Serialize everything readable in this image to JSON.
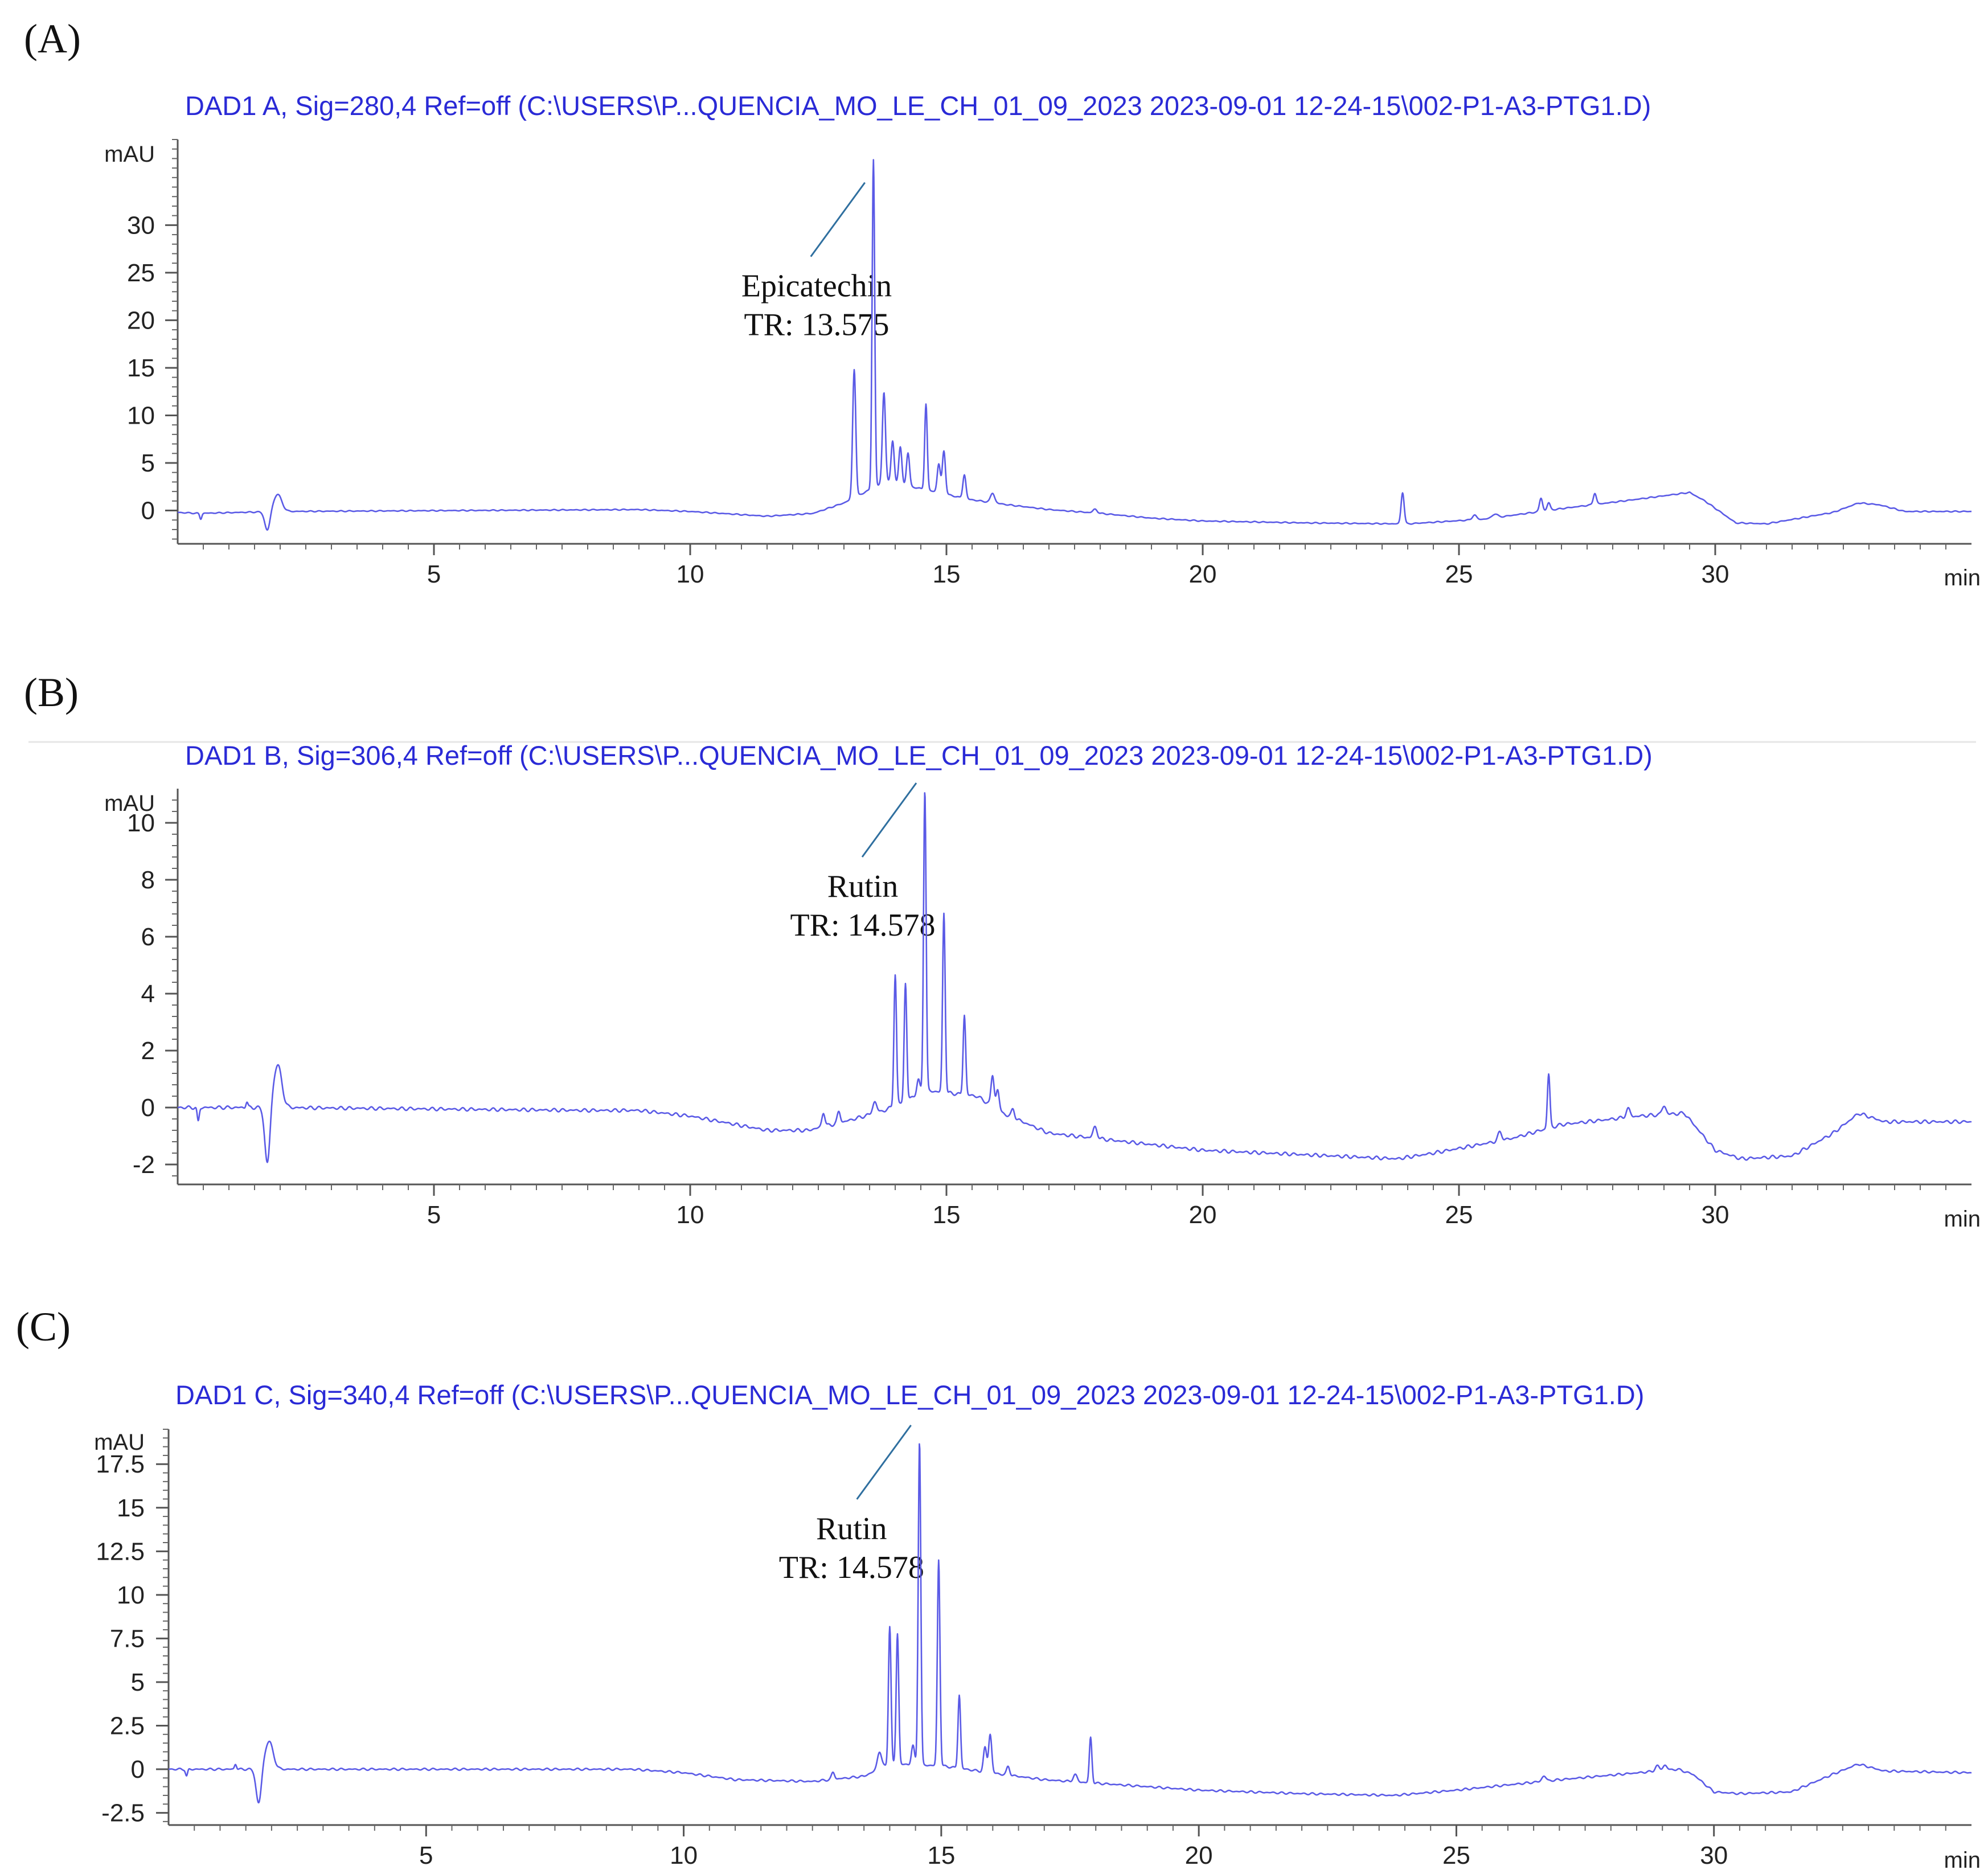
{
  "chart_data": [
    {
      "type": "line",
      "panel_label": "(A)",
      "title": "DAD1 A, Sig=280,4 Ref=off (C:\\USERS\\P...QUENCIA_MO_LE_CH_01_09_2023 2023-09-01 12-24-15\\002-P1-A3-PTG1.D)",
      "ylabel": "mAU",
      "xlabel": "min",
      "xlim": [
        0,
        35
      ],
      "ylim": [
        -3.5,
        39
      ],
      "x_ticks": [
        5,
        10,
        15,
        20,
        25,
        30
      ],
      "x_tick_labels": [
        "5",
        "10",
        "15",
        "20",
        "25",
        "30"
      ],
      "y_ticks": [
        0,
        5,
        10,
        15,
        20,
        25,
        30
      ],
      "y_tick_labels": [
        "0",
        "5",
        "10",
        "15",
        "20",
        "25",
        "30"
      ],
      "color": "#5a5ae6",
      "annotation": {
        "line1": "Epicatechin",
        "line2": "TR: 13.575",
        "peak_x": 13.575,
        "label_x": 10.8,
        "label_y": 22.5
      },
      "baseline": [
        [
          0,
          -0.2
        ],
        [
          0.4,
          -0.3
        ],
        [
          2.0,
          -0.1
        ],
        [
          9.0,
          0.1
        ],
        [
          10.0,
          -0.1
        ],
        [
          11.5,
          -0.6
        ],
        [
          12.4,
          -0.3
        ],
        [
          13.0,
          0.8
        ],
        [
          13.8,
          3.0
        ],
        [
          14.6,
          2.2
        ],
        [
          15.4,
          1.2
        ],
        [
          16.2,
          0.6
        ],
        [
          17.0,
          0.1
        ],
        [
          18.0,
          -0.3
        ],
        [
          19.0,
          -0.8
        ],
        [
          20.0,
          -1.1
        ],
        [
          22.0,
          -1.3
        ],
        [
          23.8,
          -1.4
        ],
        [
          24.0,
          -1.4
        ],
        [
          25.5,
          -0.9
        ],
        [
          27.0,
          0.2
        ],
        [
          28.5,
          1.2
        ],
        [
          29.5,
          1.9
        ],
        [
          29.8,
          1.0
        ],
        [
          30.4,
          -1.3
        ],
        [
          31.0,
          -1.4
        ],
        [
          32.3,
          -0.2
        ],
        [
          32.8,
          0.8
        ],
        [
          33.2,
          0.6
        ],
        [
          33.7,
          -0.1
        ],
        [
          35.0,
          -0.1
        ]
      ],
      "peaks": [
        {
          "x": 1.75,
          "h": -2.0,
          "w": 0.05
        },
        {
          "x": 1.95,
          "h": 1.8,
          "w": 0.08
        },
        {
          "x": 0.45,
          "h": -0.6,
          "w": 0.02
        },
        {
          "x": 13.2,
          "h": 13.5,
          "w": 0.03
        },
        {
          "x": 13.575,
          "h": 34.5,
          "w": 0.025
        },
        {
          "x": 13.78,
          "h": 9.5,
          "w": 0.03
        },
        {
          "x": 13.95,
          "h": 4.5,
          "w": 0.03
        },
        {
          "x": 14.1,
          "h": 4.0,
          "w": 0.03
        },
        {
          "x": 14.25,
          "h": 3.5,
          "w": 0.03
        },
        {
          "x": 14.6,
          "h": 9.0,
          "w": 0.025
        },
        {
          "x": 14.85,
          "h": 3.0,
          "w": 0.03
        },
        {
          "x": 14.95,
          "h": 4.5,
          "w": 0.03
        },
        {
          "x": 15.35,
          "h": 2.5,
          "w": 0.03
        },
        {
          "x": 15.9,
          "h": 1.0,
          "w": 0.04
        },
        {
          "x": 17.9,
          "h": 0.4,
          "w": 0.04
        },
        {
          "x": 23.9,
          "h": 3.3,
          "w": 0.03
        },
        {
          "x": 25.3,
          "h": 0.5,
          "w": 0.04
        },
        {
          "x": 25.7,
          "h": 0.4,
          "w": 0.05
        },
        {
          "x": 26.6,
          "h": 1.4,
          "w": 0.03
        },
        {
          "x": 26.75,
          "h": 0.8,
          "w": 0.03
        },
        {
          "x": 27.65,
          "h": 1.2,
          "w": 0.03
        }
      ]
    },
    {
      "type": "line",
      "panel_label": "(B)",
      "title": "DAD1 B, Sig=306,4 Ref=off (C:\\USERS\\P...QUENCIA_MO_LE_CH_01_09_2023 2023-09-01 12-24-15\\002-P1-A3-PTG1.D)",
      "ylabel": "mAU",
      "xlabel": "min",
      "xlim": [
        0,
        35
      ],
      "ylim": [
        -2.7,
        11.2
      ],
      "x_ticks": [
        5,
        10,
        15,
        20,
        25,
        30
      ],
      "x_tick_labels": [
        "5",
        "10",
        "15",
        "20",
        "25",
        "30"
      ],
      "y_ticks": [
        -2,
        0,
        2,
        4,
        6,
        8,
        10
      ],
      "y_tick_labels": [
        "-2",
        "0",
        "2",
        "4",
        "6",
        "8",
        "10"
      ],
      "color": "#5a5ae6",
      "annotation": {
        "line1": "Rutin",
        "line2": "TR: 14.578",
        "peak_x": 14.578,
        "label_x": 11.7,
        "label_y": 7.4
      },
      "baseline": [
        [
          0,
          0.0
        ],
        [
          1.5,
          0.0
        ],
        [
          2.0,
          0.0
        ],
        [
          8.0,
          -0.1
        ],
        [
          9.0,
          -0.1
        ],
        [
          10.0,
          -0.3
        ],
        [
          11.5,
          -0.8
        ],
        [
          12.3,
          -0.8
        ],
        [
          13.0,
          -0.5
        ],
        [
          13.8,
          -0.1
        ],
        [
          14.6,
          0.6
        ],
        [
          15.6,
          0.4
        ],
        [
          16.1,
          -0.2
        ],
        [
          17.0,
          -0.9
        ],
        [
          18.0,
          -1.1
        ],
        [
          20.0,
          -1.5
        ],
        [
          23.8,
          -1.8
        ],
        [
          24.5,
          -1.6
        ],
        [
          26.0,
          -1.1
        ],
        [
          27.0,
          -0.6
        ],
        [
          28.5,
          -0.3
        ],
        [
          29.4,
          -0.2
        ],
        [
          30.0,
          -1.5
        ],
        [
          30.5,
          -1.8
        ],
        [
          31.5,
          -1.7
        ],
        [
          32.3,
          -0.9
        ],
        [
          32.8,
          -0.2
        ],
        [
          33.3,
          -0.5
        ],
        [
          35.0,
          -0.5
        ]
      ],
      "peaks": [
        {
          "x": 1.75,
          "h": -2.0,
          "w": 0.05
        },
        {
          "x": 1.95,
          "h": 1.5,
          "w": 0.08
        },
        {
          "x": 1.35,
          "h": 0.2,
          "w": 0.02
        },
        {
          "x": 0.4,
          "h": -0.5,
          "w": 0.02
        },
        {
          "x": 12.6,
          "h": 0.5,
          "w": 0.03
        },
        {
          "x": 12.9,
          "h": 0.4,
          "w": 0.03
        },
        {
          "x": 13.6,
          "h": 0.4,
          "w": 0.04
        },
        {
          "x": 14.0,
          "h": 4.6,
          "w": 0.025
        },
        {
          "x": 14.2,
          "h": 4.1,
          "w": 0.025
        },
        {
          "x": 14.45,
          "h": 0.5,
          "w": 0.03
        },
        {
          "x": 14.578,
          "h": 10.6,
          "w": 0.025
        },
        {
          "x": 14.95,
          "h": 6.3,
          "w": 0.025
        },
        {
          "x": 15.35,
          "h": 2.8,
          "w": 0.025
        },
        {
          "x": 15.9,
          "h": 1.1,
          "w": 0.03
        },
        {
          "x": 16.0,
          "h": 0.7,
          "w": 0.03
        },
        {
          "x": 16.3,
          "h": 0.3,
          "w": 0.03
        },
        {
          "x": 17.9,
          "h": 0.4,
          "w": 0.04
        },
        {
          "x": 25.8,
          "h": 0.3,
          "w": 0.04
        },
        {
          "x": 26.75,
          "h": 1.9,
          "w": 0.025
        },
        {
          "x": 28.3,
          "h": 0.3,
          "w": 0.04
        },
        {
          "x": 29.0,
          "h": 0.3,
          "w": 0.04
        }
      ]
    },
    {
      "type": "line",
      "panel_label": "(C)",
      "title": "DAD1 C, Sig=340,4 Ref=off (C:\\USERS\\P...QUENCIA_MO_LE_CH_01_09_2023 2023-09-01 12-24-15\\002-P1-A3-PTG1.D)",
      "ylabel": "mAU",
      "xlabel": "min",
      "xlim": [
        0,
        35
      ],
      "ylim": [
        -3.2,
        19.5
      ],
      "x_ticks": [
        5,
        10,
        15,
        20,
        25,
        30
      ],
      "x_tick_labels": [
        "5",
        "10",
        "15",
        "20",
        "25",
        "30"
      ],
      "y_ticks": [
        -2.5,
        0,
        2.5,
        5,
        7.5,
        10,
        12.5,
        15,
        17.5
      ],
      "y_tick_labels": [
        "-2.5",
        "0",
        "2.5",
        "5",
        "7.5",
        "10",
        "12.5",
        "15",
        "17.5"
      ],
      "color": "#5a5ae6",
      "annotation": {
        "line1": "Rutin",
        "line2": "TR: 14.578",
        "peak_x": 14.578,
        "label_x": 11.6,
        "label_y": 13.2
      },
      "baseline": [
        [
          0,
          0.0
        ],
        [
          1.2,
          0.0
        ],
        [
          2.0,
          0.0
        ],
        [
          8.0,
          0.0
        ],
        [
          9.0,
          0.0
        ],
        [
          10.0,
          -0.2
        ],
        [
          11.0,
          -0.6
        ],
        [
          12.5,
          -0.7
        ],
        [
          13.5,
          -0.4
        ],
        [
          14.0,
          0.3
        ],
        [
          15.0,
          0.2
        ],
        [
          16.2,
          -0.3
        ],
        [
          17.0,
          -0.6
        ],
        [
          18.0,
          -0.8
        ],
        [
          20.0,
          -1.2
        ],
        [
          22.0,
          -1.4
        ],
        [
          23.8,
          -1.5
        ],
        [
          25.0,
          -1.2
        ],
        [
          27.0,
          -0.6
        ],
        [
          29.3,
          0.0
        ],
        [
          29.6,
          -0.3
        ],
        [
          30.0,
          -1.3
        ],
        [
          30.5,
          -1.4
        ],
        [
          31.5,
          -1.3
        ],
        [
          32.3,
          -0.3
        ],
        [
          32.8,
          0.3
        ],
        [
          33.3,
          -0.1
        ],
        [
          35.0,
          -0.2
        ]
      ],
      "peaks": [
        {
          "x": 1.75,
          "h": -2.0,
          "w": 0.05
        },
        {
          "x": 1.95,
          "h": 1.6,
          "w": 0.08
        },
        {
          "x": 1.3,
          "h": 0.3,
          "w": 0.02
        },
        {
          "x": 0.35,
          "h": -0.4,
          "w": 0.02
        },
        {
          "x": 12.9,
          "h": 0.4,
          "w": 0.03
        },
        {
          "x": 13.8,
          "h": 1.0,
          "w": 0.04
        },
        {
          "x": 14.0,
          "h": 7.9,
          "w": 0.025
        },
        {
          "x": 14.15,
          "h": 7.5,
          "w": 0.025
        },
        {
          "x": 14.45,
          "h": 1.1,
          "w": 0.03
        },
        {
          "x": 14.578,
          "h": 18.6,
          "w": 0.025
        },
        {
          "x": 14.95,
          "h": 11.8,
          "w": 0.025
        },
        {
          "x": 15.35,
          "h": 4.2,
          "w": 0.025
        },
        {
          "x": 15.85,
          "h": 1.4,
          "w": 0.03
        },
        {
          "x": 15.95,
          "h": 2.2,
          "w": 0.03
        },
        {
          "x": 16.3,
          "h": 0.5,
          "w": 0.03
        },
        {
          "x": 17.6,
          "h": 0.4,
          "w": 0.04
        },
        {
          "x": 17.9,
          "h": 2.6,
          "w": 0.025
        },
        {
          "x": 26.7,
          "h": 0.3,
          "w": 0.04
        },
        {
          "x": 28.9,
          "h": 0.3,
          "w": 0.04
        },
        {
          "x": 29.05,
          "h": 0.3,
          "w": 0.04
        }
      ]
    }
  ]
}
